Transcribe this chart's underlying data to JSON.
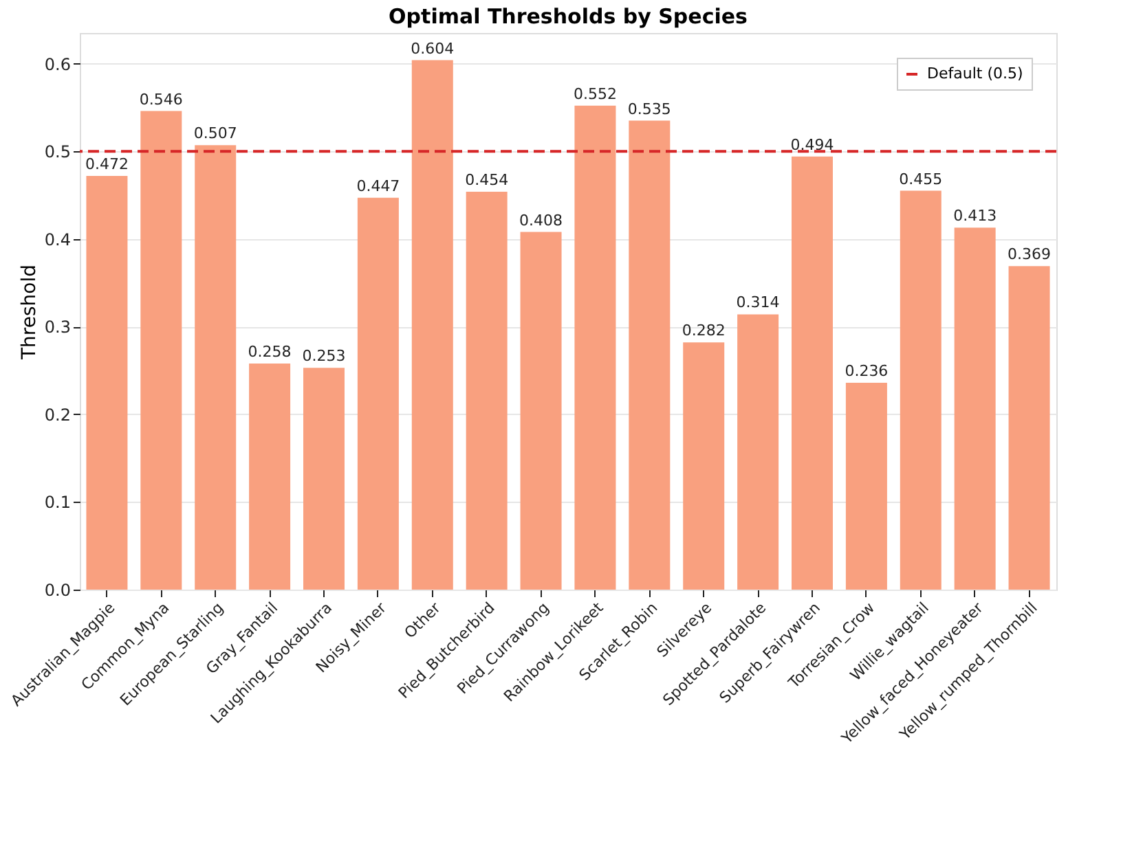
{
  "chart_data": {
    "type": "bar",
    "title": "Optimal Thresholds by Species",
    "ylabel": "Threshold",
    "categories": [
      "Australian_Magpie",
      "Common_Myna",
      "European_Starling",
      "Gray_Fantail",
      "Laughing_Kookaburra",
      "Noisy_Miner",
      "Other",
      "Pied_Butcherbird",
      "Pied_Currawong",
      "Rainbow_Lorikeet",
      "Scarlet_Robin",
      "Silvereye",
      "Spotted_Pardalote",
      "Superb_Fairywren",
      "Torresian_Crow",
      "Willie_wagtail",
      "Yellow_faced_Honeyeater",
      "Yellow_rumped_Thornbill"
    ],
    "values": [
      0.472,
      0.546,
      0.507,
      0.258,
      0.253,
      0.447,
      0.604,
      0.454,
      0.408,
      0.552,
      0.535,
      0.282,
      0.314,
      0.494,
      0.236,
      0.455,
      0.413,
      0.369
    ],
    "color": "#f9a07f",
    "ylim": [
      0,
      0.635
    ],
    "yticks": [
      {
        "value": 0,
        "label": "0.0"
      },
      0.1,
      0.2,
      0.3,
      0.4,
      0.5,
      0.6
    ],
    "grid": "y",
    "data_labels": true,
    "legend": "top right",
    "ref_lines": [
      {
        "axis": "y",
        "value": 0.5,
        "label": "Default (0.5)",
        "color": "#d62728",
        "line_style": "dashed"
      }
    ]
  }
}
